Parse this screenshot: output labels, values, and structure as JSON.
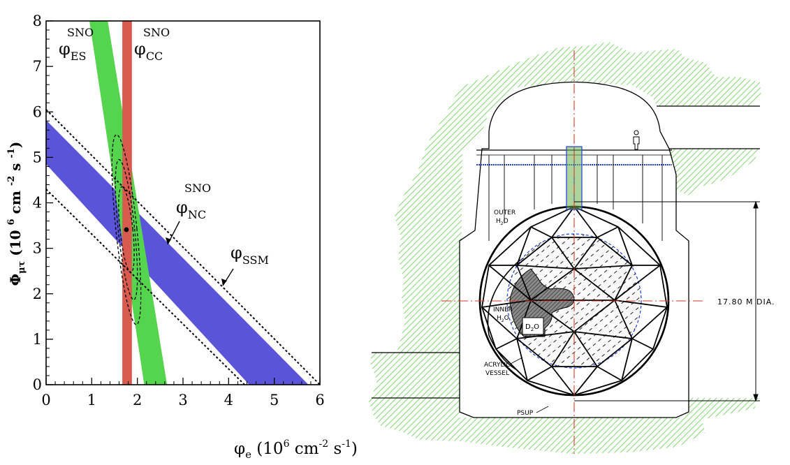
{
  "chart_data": {
    "type": "area",
    "xlim": [
      0,
      6
    ],
    "ylim": [
      0,
      8
    ],
    "xticks": [
      "0",
      "1",
      "2",
      "3",
      "4",
      "5",
      "6"
    ],
    "yticks": [
      "0",
      "1",
      "2",
      "3",
      "4",
      "5",
      "6",
      "7",
      "8"
    ],
    "xlabel": {
      "main": "φ",
      "sub": "e",
      "rest": " (10",
      "sup1": "6",
      "rest2": " cm",
      "sup2": "-2",
      "rest3": " s",
      "sup3": "-1",
      "rest4": ")"
    },
    "ylabel": {
      "main": "Φ",
      "sub": "μτ",
      "rest": " (10 ",
      "sup1": "6",
      "rest2": " cm ",
      "sup2": "-2",
      "rest3": " s ",
      "sup3": "-1",
      "rest4": ")"
    },
    "series": [
      {
        "name": "ES",
        "color": "#55d44e",
        "lower": [
          [
            0.95,
            8
          ],
          [
            2.15,
            0
          ]
        ],
        "upper": [
          [
            1.35,
            8
          ],
          [
            2.65,
            0
          ]
        ]
      },
      {
        "name": "CC",
        "color": "#d95b4f",
        "x_range": [
          1.67,
          1.88
        ]
      },
      {
        "name": "NC",
        "color": "#5a55d8",
        "lower": [
          [
            0,
            4.85
          ],
          [
            4.45,
            0
          ]
        ],
        "upper": [
          [
            0,
            5.82
          ],
          [
            5.75,
            0
          ]
        ]
      },
      {
        "name": "SSM",
        "color": "#000000",
        "style": "dotted",
        "lower": [
          [
            0,
            4.3
          ],
          [
            4.35,
            0
          ]
        ],
        "upper": [
          [
            0,
            6.05
          ],
          [
            6.0,
            0
          ]
        ]
      }
    ],
    "best_fit": {
      "x": 1.76,
      "y": 3.41
    },
    "contours": [
      {
        "cx": 1.76,
        "cy": 3.41,
        "rx": 0.14,
        "ry": 0.95,
        "angle": -6
      },
      {
        "cx": 1.76,
        "cy": 3.41,
        "rx": 0.18,
        "ry": 1.55,
        "angle": -6
      },
      {
        "cx": 1.76,
        "cy": 3.41,
        "rx": 0.23,
        "ry": 2.1,
        "angle": -6
      }
    ],
    "annotations": [
      {
        "id": "es",
        "main": "φ",
        "sub": "ES",
        "sup": "SNO"
      },
      {
        "id": "cc",
        "main": "φ",
        "sub": "CC",
        "sup": "SNO"
      },
      {
        "id": "nc",
        "main": "φ",
        "sub": "NC",
        "sup": "SNO"
      },
      {
        "id": "ssm",
        "main": "φ",
        "sub": "SSM",
        "sup": ""
      }
    ]
  },
  "detector": {
    "labels": {
      "outer_water": [
        "OUTER",
        "H",
        "2",
        "O"
      ],
      "inner_water": [
        "INNER",
        "H",
        "2",
        "O"
      ],
      "heavy_water": [
        "D",
        "2",
        "O"
      ],
      "acrylic_vessel": [
        "ACRYLIC",
        "VESSEL"
      ],
      "psup": "PSUP",
      "diameter": "17.80 M DIA."
    },
    "colors": {
      "rock_hatch": "#7ed86a",
      "water_line": "#1f3fdc",
      "neck": "#6ab04c",
      "centerline": "#d83a2a"
    }
  }
}
